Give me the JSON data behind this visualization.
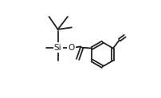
{
  "bg_color": "#ffffff",
  "line_color": "#222222",
  "line_width": 1.3,
  "figsize": [
    2.03,
    1.23
  ],
  "dpi": 100,
  "si_label": "Si",
  "o_label": "O",
  "si_fontsize": 7.5,
  "o_fontsize": 7.5,
  "xlim": [
    0,
    1
  ],
  "ylim": [
    0,
    1
  ]
}
